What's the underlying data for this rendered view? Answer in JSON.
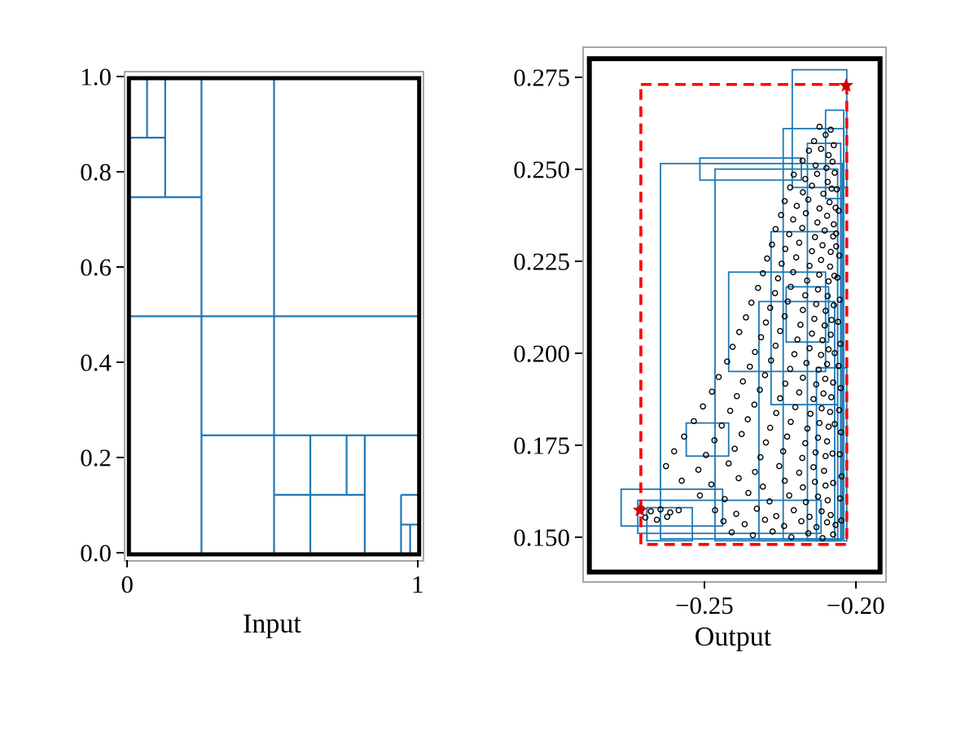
{
  "figure": {
    "background": "#ffffff"
  },
  "chart_data": [
    {
      "id": "input",
      "type": "line",
      "title": "",
      "xlabel": "Input",
      "ylabel": "",
      "xlim": [
        -0.012,
        1.012
      ],
      "ylim": [
        -0.012,
        1.012
      ],
      "grid": false,
      "legend": false,
      "x_ticks": [
        {
          "value": 0,
          "label": "0"
        },
        {
          "value": 1,
          "label": "1"
        }
      ],
      "y_ticks": [
        {
          "value": 0.0,
          "label": "0.0"
        },
        {
          "value": 0.2,
          "label": "0.2"
        },
        {
          "value": 0.4,
          "label": "0.4"
        },
        {
          "value": 0.6,
          "label": "0.6"
        },
        {
          "value": 0.8,
          "label": "0.8"
        },
        {
          "value": 1.0,
          "label": "1.0"
        }
      ],
      "border_rect": [
        0,
        0,
        1,
        1
      ],
      "border_color": "#000000",
      "line_color": "#1f77b4",
      "partition_segments": {
        "horizontal": [
          [
            0.875,
            0,
            0.125
          ],
          [
            0.75,
            0,
            0.25
          ],
          [
            0.5,
            0,
            1
          ],
          [
            0.25,
            0.25,
            1
          ],
          [
            0.125,
            0.5,
            0.8125
          ],
          [
            0.125,
            0.9375,
            1
          ],
          [
            0.0625,
            0.9375,
            1
          ]
        ],
        "vertical": [
          [
            0.0625,
            0.875,
            1
          ],
          [
            0.125,
            0.75,
            1
          ],
          [
            0.25,
            0,
            1
          ],
          [
            0.5,
            0,
            1
          ],
          [
            0.625,
            0,
            0.25
          ],
          [
            0.75,
            0.125,
            0.25
          ],
          [
            0.8125,
            0,
            0.25
          ],
          [
            0.9375,
            0,
            0.125
          ],
          [
            0.96875,
            0,
            0.0625
          ]
        ]
      }
    },
    {
      "id": "output",
      "type": "scatter",
      "title": "",
      "xlabel": "Output",
      "ylabel": "",
      "xlim": [
        -0.2903,
        -0.1908
      ],
      "ylim": [
        0.1385,
        0.2834
      ],
      "grid": false,
      "legend": false,
      "x_ticks": [
        {
          "value": -0.25,
          "label": "−0.25"
        },
        {
          "value": -0.2,
          "label": "−0.20"
        }
      ],
      "y_ticks": [
        {
          "value": 0.15,
          "label": "0.150"
        },
        {
          "value": 0.175,
          "label": "0.175"
        },
        {
          "value": 0.2,
          "label": "0.200"
        },
        {
          "value": 0.225,
          "label": "0.225"
        },
        {
          "value": 0.25,
          "label": "0.250"
        },
        {
          "value": 0.275,
          "label": "0.275"
        }
      ],
      "colors": {
        "points": "#000000",
        "boxes": "#1f77b4",
        "dashed": "#ff0000",
        "markers": "#d40000",
        "border": "#000000"
      },
      "border_rect": [
        -0.2885,
        0.141,
        -0.1925,
        0.2805
      ],
      "border_color": "#000000",
      "red_dashed_rect": [
        -0.2715,
        0.1485,
        -0.2035,
        0.2735
      ],
      "red_markers": [
        [
          -0.2718,
          0.1578
        ],
        [
          -0.2037,
          0.2732
        ]
      ],
      "blue_boxes": [
        [
          -0.265,
          0.15,
          -0.205,
          0.252
        ],
        [
          -0.247,
          0.1495,
          -0.2065,
          0.2505
        ],
        [
          -0.252,
          0.2475,
          -0.2185,
          0.2535
        ],
        [
          -0.2215,
          0.2455,
          -0.2035,
          0.2775
        ],
        [
          -0.2245,
          0.15,
          -0.2045,
          0.2615
        ],
        [
          -0.2135,
          0.1495,
          -0.2035,
          0.1965
        ],
        [
          -0.278,
          0.1535,
          -0.2445,
          0.1635
        ],
        [
          -0.2725,
          0.1515,
          -0.212,
          0.1605
        ],
        [
          -0.2325,
          0.1495,
          -0.2075,
          0.2145
        ],
        [
          -0.2425,
          0.1955,
          -0.2105,
          0.2225
        ],
        [
          -0.2285,
          0.1865,
          -0.2065,
          0.2335
        ],
        [
          -0.2165,
          0.1495,
          -0.2055,
          0.2575
        ],
        [
          -0.2695,
          0.1495,
          -0.2545,
          0.1585
        ],
        [
          -0.2565,
          0.1725,
          -0.2425,
          0.1815
        ],
        [
          -0.2235,
          0.2035,
          -0.2095,
          0.2185
        ],
        [
          -0.2105,
          0.2425,
          -0.2045,
          0.2665
        ]
      ],
      "points": [
        [
          -0.2125,
          0.262
        ],
        [
          -0.2105,
          0.2598
        ],
        [
          -0.2088,
          0.2612
        ],
        [
          -0.2143,
          0.2581
        ],
        [
          -0.216,
          0.2555
        ],
        [
          -0.212,
          0.256
        ],
        [
          -0.2095,
          0.2543
        ],
        [
          -0.2078,
          0.257
        ],
        [
          -0.2181,
          0.2528
        ],
        [
          -0.2138,
          0.2515
        ],
        [
          -0.2102,
          0.2508
        ],
        [
          -0.2082,
          0.2525
        ],
        [
          -0.221,
          0.249
        ],
        [
          -0.2172,
          0.2478
        ],
        [
          -0.2133,
          0.2492
        ],
        [
          -0.2098,
          0.247
        ],
        [
          -0.2075,
          0.2495
        ],
        [
          -0.2222,
          0.2455
        ],
        [
          -0.218,
          0.2442
        ],
        [
          -0.215,
          0.246
        ],
        [
          -0.2112,
          0.2438
        ],
        [
          -0.2085,
          0.2452
        ],
        [
          -0.224,
          0.2418
        ],
        [
          -0.22,
          0.2405
        ],
        [
          -0.2162,
          0.2422
        ],
        [
          -0.2125,
          0.2398
        ],
        [
          -0.2092,
          0.2415
        ],
        [
          -0.2072,
          0.24
        ],
        [
          -0.2252,
          0.238
        ],
        [
          -0.2212,
          0.2368
        ],
        [
          -0.217,
          0.2385
        ],
        [
          -0.2132,
          0.236
        ],
        [
          -0.21,
          0.2378
        ],
        [
          -0.2078,
          0.2355
        ],
        [
          -0.227,
          0.2342
        ],
        [
          -0.2225,
          0.2328
        ],
        [
          -0.2182,
          0.2345
        ],
        [
          -0.214,
          0.232
        ],
        [
          -0.2108,
          0.2338
        ],
        [
          -0.208,
          0.2322
        ],
        [
          -0.2282,
          0.23
        ],
        [
          -0.2238,
          0.2288
        ],
        [
          -0.2192,
          0.2305
        ],
        [
          -0.215,
          0.2282
        ],
        [
          -0.2115,
          0.2298
        ],
        [
          -0.2088,
          0.228
        ],
        [
          -0.207,
          0.2295
        ],
        [
          -0.2298,
          0.2262
        ],
        [
          -0.225,
          0.2248
        ],
        [
          -0.2202,
          0.2265
        ],
        [
          -0.2158,
          0.2242
        ],
        [
          -0.212,
          0.2258
        ],
        [
          -0.209,
          0.224
        ],
        [
          -0.2312,
          0.2222
        ],
        [
          -0.2262,
          0.2208
        ],
        [
          -0.2212,
          0.2225
        ],
        [
          -0.2166,
          0.2202
        ],
        [
          -0.2126,
          0.2218
        ],
        [
          -0.2095,
          0.22
        ],
        [
          -0.2076,
          0.2215
        ],
        [
          -0.2328,
          0.2182
        ],
        [
          -0.2272,
          0.2168
        ],
        [
          -0.222,
          0.2185
        ],
        [
          -0.2172,
          0.2162
        ],
        [
          -0.213,
          0.2178
        ],
        [
          -0.2098,
          0.216
        ],
        [
          -0.235,
          0.2142
        ],
        [
          -0.2288,
          0.2128
        ],
        [
          -0.223,
          0.2145
        ],
        [
          -0.218,
          0.2122
        ],
        [
          -0.2136,
          0.2138
        ],
        [
          -0.2105,
          0.212
        ],
        [
          -0.2078,
          0.2135
        ],
        [
          -0.2368,
          0.2102
        ],
        [
          -0.2302,
          0.2088
        ],
        [
          -0.224,
          0.2105
        ],
        [
          -0.2188,
          0.2082
        ],
        [
          -0.2142,
          0.2098
        ],
        [
          -0.2108,
          0.208
        ],
        [
          -0.2085,
          0.2095
        ],
        [
          -0.239,
          0.2062
        ],
        [
          -0.2318,
          0.2048
        ],
        [
          -0.2255,
          0.2065
        ],
        [
          -0.2198,
          0.2042
        ],
        [
          -0.215,
          0.2058
        ],
        [
          -0.2115,
          0.204
        ],
        [
          -0.2088,
          0.2055
        ],
        [
          -0.2412,
          0.2022
        ],
        [
          -0.2338,
          0.2008
        ],
        [
          -0.227,
          0.2025
        ],
        [
          -0.2208,
          0.2002
        ],
        [
          -0.2158,
          0.2018
        ],
        [
          -0.212,
          0.2
        ],
        [
          -0.2095,
          0.2015
        ],
        [
          -0.2075,
          0.2005
        ],
        [
          -0.243,
          0.1982
        ],
        [
          -0.2355,
          0.1968
        ],
        [
          -0.2285,
          0.1985
        ],
        [
          -0.2222,
          0.1962
        ],
        [
          -0.2168,
          0.1978
        ],
        [
          -0.2128,
          0.196
        ],
        [
          -0.21,
          0.1975
        ],
        [
          -0.2458,
          0.194
        ],
        [
          -0.2378,
          0.1928
        ],
        [
          -0.2305,
          0.1945
        ],
        [
          -0.2238,
          0.1922
        ],
        [
          -0.218,
          0.1938
        ],
        [
          -0.2136,
          0.192
        ],
        [
          -0.2106,
          0.1935
        ],
        [
          -0.208,
          0.1925
        ],
        [
          -0.248,
          0.19
        ],
        [
          -0.2398,
          0.1888
        ],
        [
          -0.2322,
          0.1905
        ],
        [
          -0.2255,
          0.1882
        ],
        [
          -0.2192,
          0.1898
        ],
        [
          -0.2145,
          0.188
        ],
        [
          -0.2112,
          0.1895
        ],
        [
          -0.2086,
          0.1885
        ],
        [
          -0.251,
          0.186
        ],
        [
          -0.242,
          0.1848
        ],
        [
          -0.234,
          0.1865
        ],
        [
          -0.2268,
          0.1842
        ],
        [
          -0.2205,
          0.1858
        ],
        [
          -0.2155,
          0.184
        ],
        [
          -0.2118,
          0.1855
        ],
        [
          -0.209,
          0.1845
        ],
        [
          -0.254,
          0.182
        ],
        [
          -0.2448,
          0.1808
        ],
        [
          -0.2362,
          0.1825
        ],
        [
          -0.2288,
          0.1802
        ],
        [
          -0.222,
          0.1818
        ],
        [
          -0.2165,
          0.18
        ],
        [
          -0.2125,
          0.1815
        ],
        [
          -0.2095,
          0.1805
        ],
        [
          -0.2075,
          0.1812
        ],
        [
          -0.2572,
          0.1778
        ],
        [
          -0.2472,
          0.1768
        ],
        [
          -0.2382,
          0.1785
        ],
        [
          -0.2302,
          0.1762
        ],
        [
          -0.2232,
          0.1778
        ],
        [
          -0.2172,
          0.176
        ],
        [
          -0.213,
          0.1775
        ],
        [
          -0.21,
          0.1765
        ],
        [
          -0.2605,
          0.1738
        ],
        [
          -0.25,
          0.1728
        ],
        [
          -0.2405,
          0.1745
        ],
        [
          -0.232,
          0.1722
        ],
        [
          -0.2245,
          0.1738
        ],
        [
          -0.2182,
          0.172
        ],
        [
          -0.2138,
          0.1735
        ],
        [
          -0.2105,
          0.1725
        ],
        [
          -0.2082,
          0.1732
        ],
        [
          -0.2632,
          0.1698
        ],
        [
          -0.2525,
          0.1688
        ],
        [
          -0.2425,
          0.1705
        ],
        [
          -0.2338,
          0.1682
        ],
        [
          -0.2258,
          0.1698
        ],
        [
          -0.2192,
          0.168
        ],
        [
          -0.2145,
          0.1695
        ],
        [
          -0.211,
          0.1685
        ],
        [
          -0.258,
          0.1658
        ],
        [
          -0.2482,
          0.1648
        ],
        [
          -0.2392,
          0.1665
        ],
        [
          -0.2312,
          0.1642
        ],
        [
          -0.224,
          0.1658
        ],
        [
          -0.218,
          0.164
        ],
        [
          -0.214,
          0.1655
        ],
        [
          -0.2105,
          0.1645
        ],
        [
          -0.208,
          0.1652
        ],
        [
          -0.252,
          0.1618
        ],
        [
          -0.2438,
          0.1608
        ],
        [
          -0.236,
          0.1625
        ],
        [
          -0.229,
          0.1602
        ],
        [
          -0.2225,
          0.1618
        ],
        [
          -0.217,
          0.16
        ],
        [
          -0.213,
          0.1615
        ],
        [
          -0.2098,
          0.1605
        ],
        [
          -0.2712,
          0.1582
        ],
        [
          -0.2682,
          0.1575
        ],
        [
          -0.265,
          0.158
        ],
        [
          -0.2618,
          0.1572
        ],
        [
          -0.259,
          0.1578
        ],
        [
          -0.247,
          0.1578
        ],
        [
          -0.24,
          0.1568
        ],
        [
          -0.2332,
          0.1582
        ],
        [
          -0.2268,
          0.1562
        ],
        [
          -0.221,
          0.1578
        ],
        [
          -0.2158,
          0.156
        ],
        [
          -0.2118,
          0.1575
        ],
        [
          -0.2088,
          0.1565
        ],
        [
          -0.27,
          0.1558
        ],
        [
          -0.2662,
          0.1552
        ],
        [
          -0.2628,
          0.156
        ],
        [
          -0.2442,
          0.1548
        ],
        [
          -0.2372,
          0.154
        ],
        [
          -0.2305,
          0.1552
        ],
        [
          -0.2242,
          0.1535
        ],
        [
          -0.2185,
          0.1548
        ],
        [
          -0.2135,
          0.1532
        ],
        [
          -0.21,
          0.1545
        ],
        [
          -0.2072,
          0.1538
        ],
        [
          -0.2415,
          0.1518
        ],
        [
          -0.2345,
          0.151
        ],
        [
          -0.228,
          0.152
        ],
        [
          -0.2218,
          0.1505
        ],
        [
          -0.2162,
          0.1515
        ],
        [
          -0.2115,
          0.1502
        ],
        [
          -0.208,
          0.1512
        ],
        [
          -0.2068,
          0.245
        ],
        [
          -0.2062,
          0.2392
        ],
        [
          -0.207,
          0.233
        ],
        [
          -0.206,
          0.227
        ],
        [
          -0.2066,
          0.221
        ],
        [
          -0.2058,
          0.215
        ],
        [
          -0.2064,
          0.209
        ],
        [
          -0.2056,
          0.203
        ],
        [
          -0.2062,
          0.197
        ],
        [
          -0.2055,
          0.191
        ],
        [
          -0.206,
          0.185
        ],
        [
          -0.2054,
          0.179
        ],
        [
          -0.2058,
          0.173
        ],
        [
          -0.2052,
          0.167
        ],
        [
          -0.2057,
          0.161
        ],
        [
          -0.2053,
          0.155
        ]
      ]
    }
  ]
}
